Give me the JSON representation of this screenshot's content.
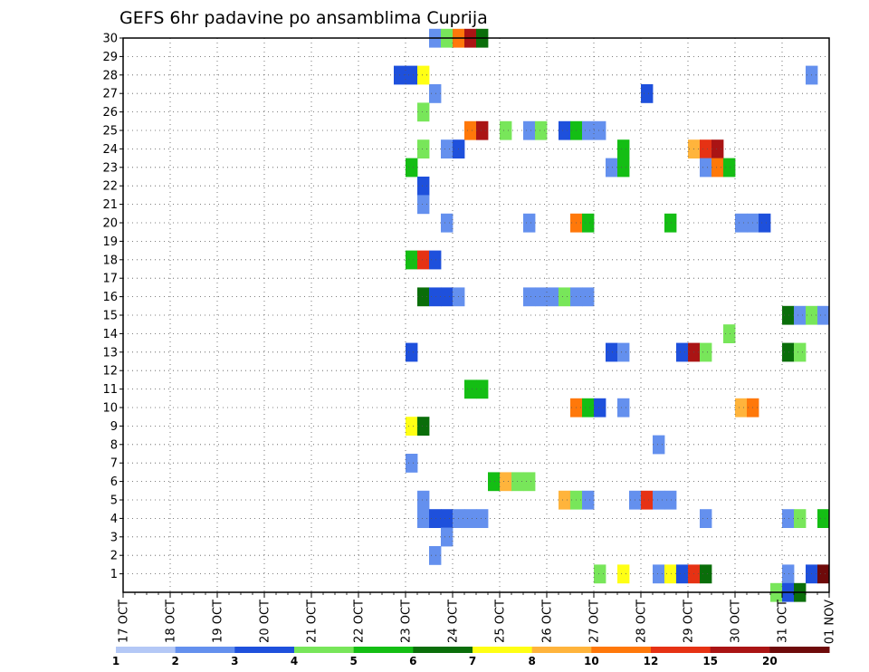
{
  "chart_data": {
    "type": "heatmap",
    "title": "GEFS 6hr padavine po ansamblima Cuprija",
    "xlabel": "",
    "ylabel": "",
    "x_tick_labels": [
      "17 OCT",
      "18 OCT",
      "19 OCT",
      "20 OCT",
      "21 OCT",
      "22 OCT",
      "23 OCT",
      "24 OCT",
      "25 OCT",
      "26 OCT",
      "27 OCT",
      "28 OCT",
      "29 OCT",
      "30 OCT",
      "31 OCT",
      "01 NOV"
    ],
    "y_tick_labels": [
      "1",
      "2",
      "3",
      "4",
      "5",
      "6",
      "7",
      "8",
      "9",
      "10",
      "11",
      "12",
      "13",
      "14",
      "15",
      "16",
      "17",
      "18",
      "19",
      "20",
      "21",
      "22",
      "23",
      "24",
      "25",
      "26",
      "27",
      "28",
      "29",
      "30"
    ],
    "xlim_days": [
      0,
      15
    ],
    "ylim": [
      0,
      30
    ],
    "grid": true,
    "colorbar": {
      "placement": "bottom",
      "labels": [
        "1",
        "2",
        "3",
        "4",
        "5",
        "6",
        "7",
        "8",
        "10",
        "12",
        "15",
        "20"
      ],
      "colors": [
        "#b4c8f6",
        "#6490ee",
        "#1e50dc",
        "#78e65a",
        "#14be14",
        "#0a6e0a",
        "#ffff14",
        "#ffb43c",
        "#ff780a",
        "#e63214",
        "#aa1414",
        "#6e0a0a"
      ]
    },
    "cell_unit": "one column = one 6-hour step (0.25 day) from 17 OCT",
    "cells": [
      [
        30,
        26,
        1
      ],
      [
        30,
        27,
        3
      ],
      [
        30,
        28,
        8
      ],
      [
        30,
        29,
        10
      ],
      [
        30,
        30,
        5
      ],
      [
        28,
        23,
        2
      ],
      [
        28,
        24,
        2
      ],
      [
        28,
        25,
        6
      ],
      [
        28,
        58,
        1
      ],
      [
        27,
        26,
        1
      ],
      [
        27,
        44,
        2
      ],
      [
        26,
        25,
        3
      ],
      [
        25,
        29,
        8
      ],
      [
        25,
        30,
        10
      ],
      [
        25,
        32,
        3
      ],
      [
        25,
        34,
        1
      ],
      [
        25,
        35,
        3
      ],
      [
        25,
        37,
        2
      ],
      [
        25,
        38,
        4
      ],
      [
        25,
        39,
        1
      ],
      [
        25,
        40,
        1
      ],
      [
        24,
        25,
        3
      ],
      [
        24,
        27,
        1
      ],
      [
        24,
        28,
        2
      ],
      [
        24,
        42,
        4
      ],
      [
        24,
        48,
        7
      ],
      [
        24,
        49,
        9
      ],
      [
        24,
        50,
        10
      ],
      [
        23,
        24,
        4
      ],
      [
        23,
        41,
        1
      ],
      [
        23,
        42,
        4
      ],
      [
        23,
        49,
        1
      ],
      [
        23,
        50,
        8
      ],
      [
        23,
        51,
        4
      ],
      [
        22,
        25,
        2
      ],
      [
        21,
        25,
        1
      ],
      [
        20,
        27,
        1
      ],
      [
        20,
        34,
        1
      ],
      [
        20,
        38,
        8
      ],
      [
        20,
        39,
        4
      ],
      [
        20,
        46,
        4
      ],
      [
        20,
        52,
        1
      ],
      [
        20,
        53,
        1
      ],
      [
        20,
        54,
        2
      ],
      [
        18,
        24,
        4
      ],
      [
        18,
        25,
        9
      ],
      [
        18,
        26,
        2
      ],
      [
        16,
        25,
        5
      ],
      [
        16,
        26,
        2
      ],
      [
        16,
        27,
        2
      ],
      [
        16,
        28,
        1
      ],
      [
        16,
        34,
        1
      ],
      [
        16,
        35,
        1
      ],
      [
        16,
        36,
        1
      ],
      [
        16,
        37,
        3
      ],
      [
        16,
        38,
        1
      ],
      [
        16,
        39,
        1
      ],
      [
        15,
        56,
        5
      ],
      [
        15,
        57,
        1
      ],
      [
        15,
        58,
        3
      ],
      [
        15,
        59,
        1
      ],
      [
        14,
        51,
        3
      ],
      [
        13,
        24,
        2
      ],
      [
        13,
        41,
        2
      ],
      [
        13,
        42,
        1
      ],
      [
        13,
        47,
        2
      ],
      [
        13,
        48,
        10
      ],
      [
        13,
        49,
        3
      ],
      [
        13,
        56,
        5
      ],
      [
        13,
        57,
        3
      ],
      [
        11,
        29,
        4
      ],
      [
        11,
        30,
        4
      ],
      [
        10,
        38,
        8
      ],
      [
        10,
        39,
        4
      ],
      [
        10,
        40,
        2
      ],
      [
        10,
        42,
        1
      ],
      [
        10,
        52,
        7
      ],
      [
        10,
        53,
        8
      ],
      [
        9,
        24,
        6
      ],
      [
        9,
        25,
        5
      ],
      [
        8,
        45,
        1
      ],
      [
        7,
        24,
        1
      ],
      [
        6,
        31,
        4
      ],
      [
        6,
        32,
        7
      ],
      [
        6,
        33,
        3
      ],
      [
        6,
        34,
        3
      ],
      [
        5,
        25,
        1
      ],
      [
        5,
        37,
        7
      ],
      [
        5,
        38,
        3
      ],
      [
        5,
        39,
        1
      ],
      [
        5,
        43,
        1
      ],
      [
        5,
        44,
        9
      ],
      [
        5,
        45,
        1
      ],
      [
        5,
        46,
        1
      ],
      [
        4,
        25,
        1
      ],
      [
        4,
        26,
        2
      ],
      [
        4,
        27,
        2
      ],
      [
        4,
        28,
        1
      ],
      [
        4,
        29,
        1
      ],
      [
        4,
        30,
        1
      ],
      [
        4,
        49,
        1
      ],
      [
        4,
        56,
        1
      ],
      [
        4,
        57,
        3
      ],
      [
        4,
        59,
        4
      ],
      [
        3,
        27,
        1
      ],
      [
        2,
        26,
        1
      ],
      [
        1,
        40,
        3
      ],
      [
        1,
        42,
        6
      ],
      [
        1,
        45,
        1
      ],
      [
        1,
        46,
        6
      ],
      [
        1,
        47,
        2
      ],
      [
        1,
        48,
        9
      ],
      [
        1,
        49,
        5
      ],
      [
        1,
        56,
        1
      ],
      [
        1,
        58,
        2
      ],
      [
        1,
        59,
        11
      ],
      [
        0,
        55,
        3
      ],
      [
        0,
        56,
        2
      ],
      [
        0,
        57,
        5
      ]
    ]
  }
}
